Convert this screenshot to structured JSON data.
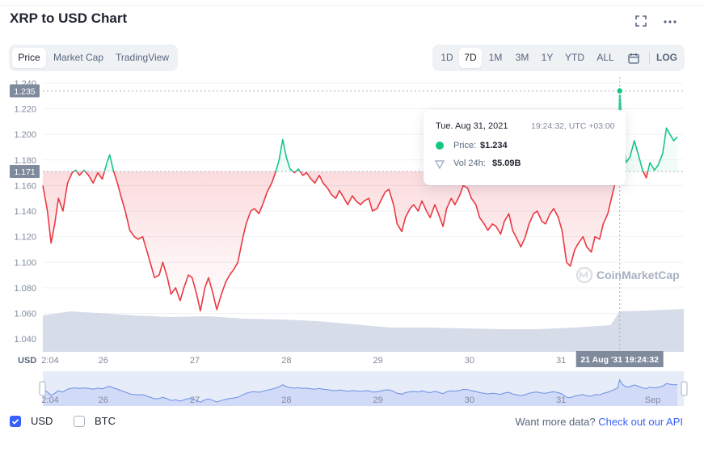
{
  "title": "XRP to USD Chart",
  "header_icons": [
    "fullscreen-icon",
    "more-icon"
  ],
  "type_tabs": [
    {
      "label": "Price",
      "active": true
    },
    {
      "label": "Market Cap",
      "active": false
    },
    {
      "label": "TradingView",
      "active": false
    }
  ],
  "range_tabs": [
    {
      "label": "1D",
      "active": false
    },
    {
      "label": "7D",
      "active": true
    },
    {
      "label": "1M",
      "active": false
    },
    {
      "label": "3M",
      "active": false
    },
    {
      "label": "1Y",
      "active": false
    },
    {
      "label": "YTD",
      "active": false
    },
    {
      "label": "ALL",
      "active": false
    }
  ],
  "calendar_icon": "calendar-icon",
  "log_label": "LOG",
  "tooltip": {
    "date": "Tue. Aug 31, 2021",
    "time": "19:24:32, UTC +03:00",
    "price_label": "Price:",
    "price_value": "$1.234",
    "vol_label": "Vol 24h:",
    "vol_value": "$5.09B"
  },
  "crosshair": {
    "x_label": "21 Aug '31 19:24:32",
    "y_labels": [
      "1.235",
      "1.171"
    ]
  },
  "watermark": "CoinMarketCap",
  "currency_label": "USD",
  "toggles": [
    {
      "label": "USD",
      "checked": true
    },
    {
      "label": "BTC",
      "checked": false
    }
  ],
  "more_data": {
    "text": "Want more data?",
    "link": "Check out our API"
  },
  "colors": {
    "up": "#16c784",
    "down": "#ea3943",
    "accent": "#3861fb",
    "volume": "#cfd6e4",
    "navigator": "#dbe4f5"
  },
  "chart_data": {
    "type": "line",
    "y_ticks": [
      "1.240",
      "1.220",
      "1.200",
      "1.180",
      "1.160",
      "1.140",
      "1.120",
      "1.100",
      "1.080",
      "1.060",
      "1.040"
    ],
    "ylim": [
      1.03,
      1.245
    ],
    "baseline": 1.171,
    "x_ticks": [
      {
        "label": "2:04",
        "day": 0
      },
      {
        "label": "26",
        "day": 0.66
      },
      {
        "label": "27",
        "day": 1.66
      },
      {
        "label": "28",
        "day": 2.66
      },
      {
        "label": "29",
        "day": 3.66
      },
      {
        "label": "30",
        "day": 4.66
      },
      {
        "label": "31",
        "day": 5.66
      }
    ],
    "navigator_ticks": [
      {
        "label": "2:04",
        "day": 0
      },
      {
        "label": "26",
        "day": 0.66
      },
      {
        "label": "27",
        "day": 1.66
      },
      {
        "label": "28",
        "day": 2.66
      },
      {
        "label": "29",
        "day": 3.66
      },
      {
        "label": "30",
        "day": 4.66
      },
      {
        "label": "31",
        "day": 5.66
      },
      {
        "label": "Sep",
        "day": 6.66
      }
    ],
    "x_max_day": 7.0,
    "price_series": {
      "name": "Price",
      "points": [
        [
          0.0,
          1.16
        ],
        [
          0.05,
          1.14
        ],
        [
          0.09,
          1.115
        ],
        [
          0.13,
          1.13
        ],
        [
          0.17,
          1.15
        ],
        [
          0.22,
          1.14
        ],
        [
          0.27,
          1.162
        ],
        [
          0.32,
          1.17
        ],
        [
          0.36,
          1.172
        ],
        [
          0.4,
          1.168
        ],
        [
          0.45,
          1.172
        ],
        [
          0.5,
          1.168
        ],
        [
          0.55,
          1.162
        ],
        [
          0.6,
          1.17
        ],
        [
          0.65,
          1.165
        ],
        [
          0.7,
          1.178
        ],
        [
          0.73,
          1.184
        ],
        [
          0.77,
          1.172
        ],
        [
          0.81,
          1.163
        ],
        [
          0.86,
          1.15
        ],
        [
          0.9,
          1.14
        ],
        [
          0.95,
          1.125
        ],
        [
          1.0,
          1.12
        ],
        [
          1.04,
          1.118
        ],
        [
          1.09,
          1.12
        ],
        [
          1.14,
          1.108
        ],
        [
          1.18,
          1.098
        ],
        [
          1.22,
          1.088
        ],
        [
          1.27,
          1.09
        ],
        [
          1.31,
          1.1
        ],
        [
          1.36,
          1.088
        ],
        [
          1.4,
          1.075
        ],
        [
          1.45,
          1.08
        ],
        [
          1.5,
          1.07
        ],
        [
          1.54,
          1.08
        ],
        [
          1.59,
          1.09
        ],
        [
          1.63,
          1.088
        ],
        [
          1.68,
          1.075
        ],
        [
          1.72,
          1.062
        ],
        [
          1.77,
          1.08
        ],
        [
          1.81,
          1.088
        ],
        [
          1.86,
          1.075
        ],
        [
          1.9,
          1.063
        ],
        [
          1.95,
          1.075
        ],
        [
          2.0,
          1.085
        ],
        [
          2.04,
          1.09
        ],
        [
          2.09,
          1.095
        ],
        [
          2.13,
          1.1
        ],
        [
          2.18,
          1.118
        ],
        [
          2.22,
          1.13
        ],
        [
          2.27,
          1.14
        ],
        [
          2.31,
          1.142
        ],
        [
          2.36,
          1.138
        ],
        [
          2.4,
          1.145
        ],
        [
          2.45,
          1.155
        ],
        [
          2.5,
          1.162
        ],
        [
          2.54,
          1.17
        ],
        [
          2.58,
          1.18
        ],
        [
          2.62,
          1.196
        ],
        [
          2.66,
          1.182
        ],
        [
          2.7,
          1.173
        ],
        [
          2.75,
          1.17
        ],
        [
          2.79,
          1.173
        ],
        [
          2.84,
          1.168
        ],
        [
          2.88,
          1.17
        ],
        [
          2.93,
          1.165
        ],
        [
          2.97,
          1.162
        ],
        [
          3.02,
          1.168
        ],
        [
          3.06,
          1.162
        ],
        [
          3.11,
          1.158
        ],
        [
          3.15,
          1.153
        ],
        [
          3.2,
          1.15
        ],
        [
          3.24,
          1.156
        ],
        [
          3.29,
          1.15
        ],
        [
          3.33,
          1.145
        ],
        [
          3.38,
          1.152
        ],
        [
          3.42,
          1.148
        ],
        [
          3.47,
          1.145
        ],
        [
          3.51,
          1.148
        ],
        [
          3.56,
          1.15
        ],
        [
          3.6,
          1.14
        ],
        [
          3.65,
          1.142
        ],
        [
          3.69,
          1.148
        ],
        [
          3.74,
          1.155
        ],
        [
          3.78,
          1.157
        ],
        [
          3.83,
          1.145
        ],
        [
          3.87,
          1.13
        ],
        [
          3.92,
          1.124
        ],
        [
          3.96,
          1.135
        ],
        [
          4.01,
          1.142
        ],
        [
          4.05,
          1.145
        ],
        [
          4.1,
          1.14
        ],
        [
          4.14,
          1.148
        ],
        [
          4.19,
          1.14
        ],
        [
          4.23,
          1.135
        ],
        [
          4.28,
          1.145
        ],
        [
          4.32,
          1.138
        ],
        [
          4.37,
          1.128
        ],
        [
          4.41,
          1.142
        ],
        [
          4.46,
          1.15
        ],
        [
          4.5,
          1.145
        ],
        [
          4.55,
          1.152
        ],
        [
          4.59,
          1.16
        ],
        [
          4.64,
          1.158
        ],
        [
          4.68,
          1.15
        ],
        [
          4.73,
          1.145
        ],
        [
          4.77,
          1.135
        ],
        [
          4.82,
          1.13
        ],
        [
          4.86,
          1.125
        ],
        [
          4.91,
          1.13
        ],
        [
          4.95,
          1.128
        ],
        [
          5.0,
          1.122
        ],
        [
          5.04,
          1.132
        ],
        [
          5.09,
          1.138
        ],
        [
          5.13,
          1.125
        ],
        [
          5.18,
          1.118
        ],
        [
          5.22,
          1.112
        ],
        [
          5.27,
          1.12
        ],
        [
          5.31,
          1.13
        ],
        [
          5.36,
          1.138
        ],
        [
          5.4,
          1.14
        ],
        [
          5.45,
          1.132
        ],
        [
          5.49,
          1.13
        ],
        [
          5.54,
          1.138
        ],
        [
          5.58,
          1.142
        ],
        [
          5.63,
          1.135
        ],
        [
          5.67,
          1.125
        ],
        [
          5.72,
          1.1
        ],
        [
          5.76,
          1.097
        ],
        [
          5.81,
          1.11
        ],
        [
          5.85,
          1.115
        ],
        [
          5.9,
          1.12
        ],
        [
          5.94,
          1.112
        ],
        [
          5.99,
          1.108
        ],
        [
          6.03,
          1.12
        ],
        [
          6.08,
          1.118
        ],
        [
          6.12,
          1.13
        ],
        [
          6.17,
          1.138
        ],
        [
          6.21,
          1.15
        ],
        [
          6.25,
          1.162
        ],
        [
          6.28,
          1.172
        ],
        [
          6.3,
          1.234
        ],
        [
          6.33,
          1.2
        ],
        [
          6.37,
          1.178
        ],
        [
          6.41,
          1.182
        ],
        [
          6.46,
          1.195
        ],
        [
          6.5,
          1.185
        ],
        [
          6.55,
          1.172
        ],
        [
          6.59,
          1.166
        ],
        [
          6.63,
          1.178
        ],
        [
          6.68,
          1.172
        ],
        [
          6.72,
          1.176
        ],
        [
          6.77,
          1.185
        ],
        [
          6.81,
          1.205
        ],
        [
          6.85,
          1.2
        ],
        [
          6.89,
          1.195
        ],
        [
          6.93,
          1.198
        ]
      ]
    },
    "volume_series": {
      "name": "Vol 24h",
      "points": [
        [
          0.0,
          0.045
        ],
        [
          0.3,
          0.05
        ],
        [
          0.6,
          0.048
        ],
        [
          1.0,
          0.045
        ],
        [
          1.4,
          0.043
        ],
        [
          1.8,
          0.044
        ],
        [
          2.2,
          0.041
        ],
        [
          2.6,
          0.04
        ],
        [
          3.0,
          0.038
        ],
        [
          3.4,
          0.034
        ],
        [
          3.8,
          0.03
        ],
        [
          4.2,
          0.03
        ],
        [
          4.6,
          0.029
        ],
        [
          5.0,
          0.028
        ],
        [
          5.4,
          0.028
        ],
        [
          5.8,
          0.03
        ],
        [
          6.2,
          0.033
        ],
        [
          6.3,
          0.05
        ],
        [
          6.6,
          0.051
        ],
        [
          7.0,
          0.053
        ]
      ]
    },
    "highlight": {
      "day": 6.3,
      "price": 1.234
    }
  }
}
